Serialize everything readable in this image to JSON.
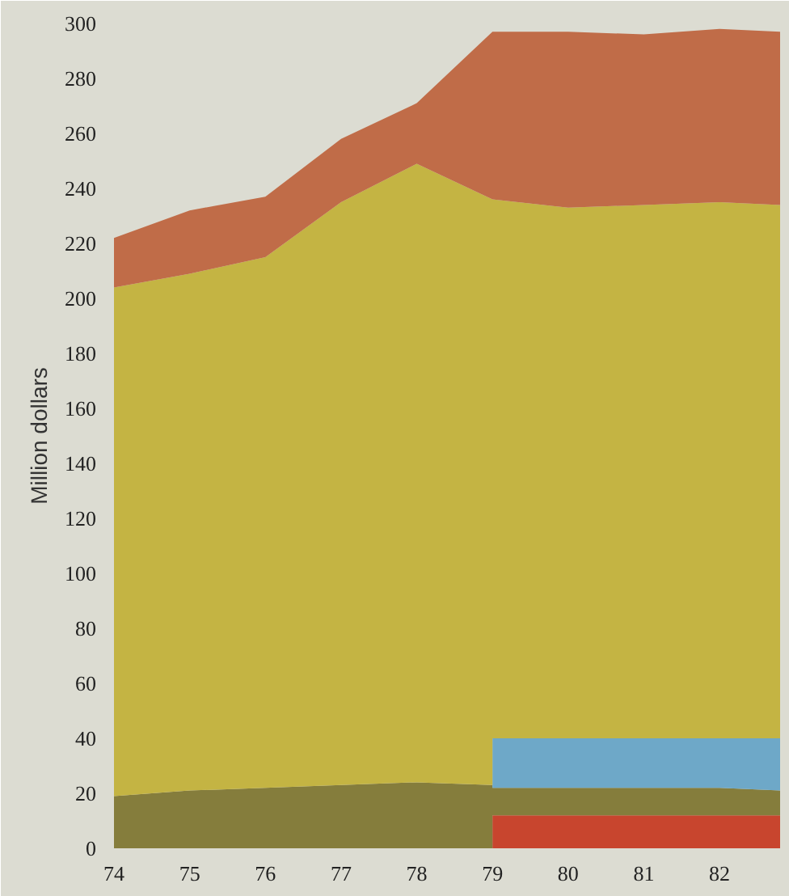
{
  "chart_data": {
    "type": "area",
    "stacked": true,
    "ylabel": "Million dollars",
    "x": [
      74,
      75,
      76,
      77,
      78,
      79,
      79,
      80,
      81,
      82,
      82.8
    ],
    "series": [
      {
        "color": "#c8452e",
        "values": [
          0,
          0,
          0,
          0,
          0,
          0,
          12,
          12,
          12,
          12,
          12
        ]
      },
      {
        "color": "#857d3c",
        "values": [
          19,
          21,
          22,
          23,
          24,
          23,
          10,
          10,
          10,
          10,
          9
        ]
      },
      {
        "color": "#6ea8c8",
        "values": [
          0,
          0,
          0,
          0,
          0,
          0,
          18,
          18,
          18,
          18,
          19
        ]
      },
      {
        "color": "#c4b443",
        "values": [
          185,
          188,
          193,
          212,
          225,
          213,
          196,
          193,
          194,
          195,
          194
        ]
      },
      {
        "color": "#c06c48",
        "values": [
          18,
          23,
          22,
          23,
          22,
          61,
          61,
          64,
          62,
          63,
          63
        ]
      }
    ],
    "xlim": [
      74,
      82.8
    ],
    "ylim": [
      0,
      300
    ],
    "xticks": [
      74,
      75,
      76,
      77,
      78,
      79,
      80,
      81,
      82
    ],
    "yticks": [
      0,
      20,
      40,
      60,
      80,
      100,
      120,
      140,
      160,
      180,
      200,
      220,
      240,
      260,
      280,
      300
    ],
    "grid": false
  }
}
